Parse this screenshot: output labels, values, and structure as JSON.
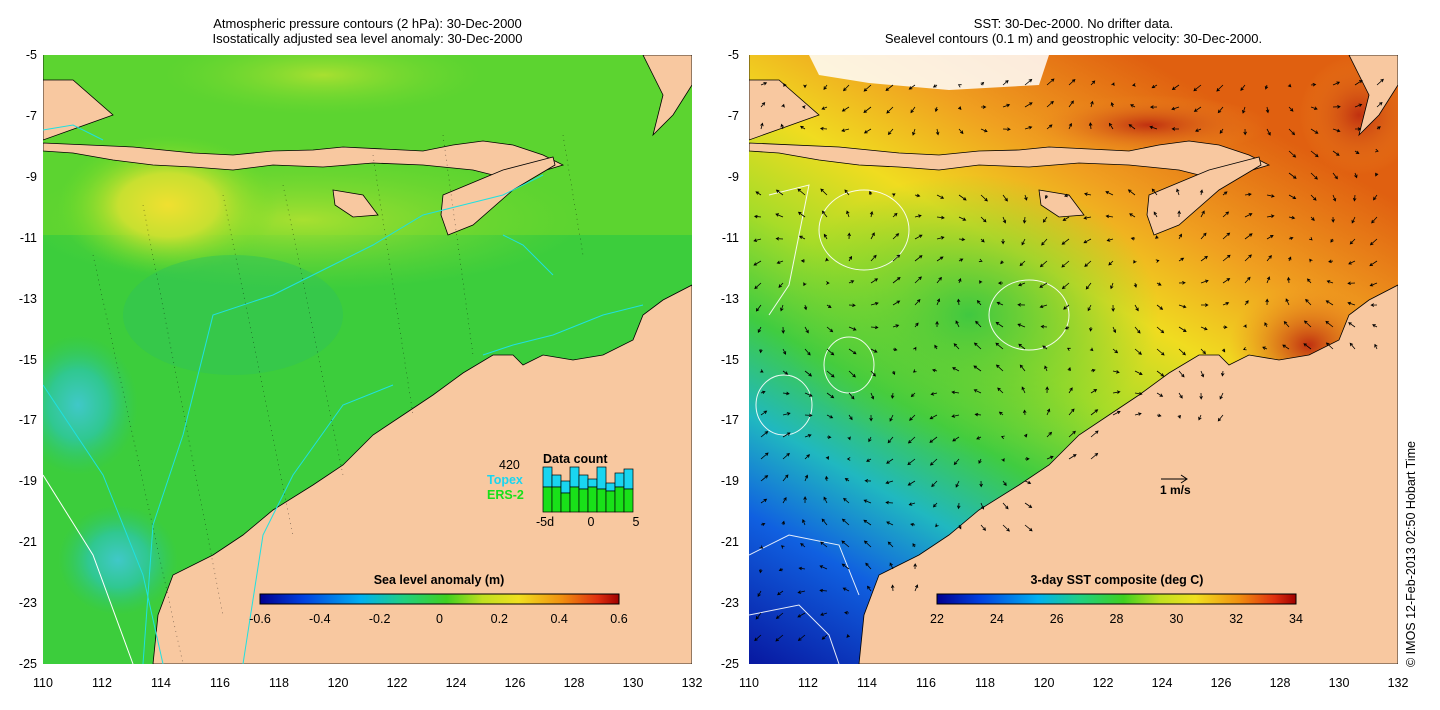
{
  "left_panel": {
    "title_line1": "Atmospheric pressure contours (2 hPa): 30-Dec-2000",
    "title_line2": "Isostatically adjusted sea level anomaly: 30-Dec-2000",
    "colorbar_label": "Sea level anomaly (m)",
    "colorbar_ticks": [
      "-0.6",
      "-0.4",
      "-0.2",
      "0",
      "0.2",
      "0.4",
      "0.6"
    ],
    "data_count": {
      "total": "420",
      "title": "Data count",
      "topex_label": "Topex",
      "ers_label": "ERS-2",
      "topex_color": "#19d5f0",
      "ers_color": "#19e019",
      "x_ticks": [
        "-5d",
        "0",
        "5"
      ]
    }
  },
  "right_panel": {
    "title_line1": "SST: 30-Dec-2000. No drifter data.",
    "title_line2": "Sealevel contours (0.1 m) and geostrophic velocity: 30-Dec-2000.",
    "colorbar_label": "3-day SST composite (deg C)",
    "colorbar_ticks": [
      "22",
      "24",
      "26",
      "28",
      "30",
      "32",
      "34"
    ],
    "velocity_scale_label": "1 m/s"
  },
  "axes": {
    "x_ticks": [
      "110",
      "112",
      "114",
      "116",
      "118",
      "120",
      "122",
      "124",
      "126",
      "128",
      "130",
      "132"
    ],
    "y_ticks": [
      "-5",
      "-7",
      "-9",
      "-11",
      "-13",
      "-15",
      "-17",
      "-19",
      "-21",
      "-23",
      "-25"
    ],
    "lon_range": [
      110,
      132
    ],
    "lat_range": [
      -25,
      -5
    ]
  },
  "credit": "© IMOS 12-Feb-2013 02:50 Hobart Time",
  "colors": {
    "land": "#f8c8a0",
    "ocean_sla": "#3ccd3c",
    "sst_warm": "#f0a020",
    "sst_cool": "#0828c8"
  }
}
